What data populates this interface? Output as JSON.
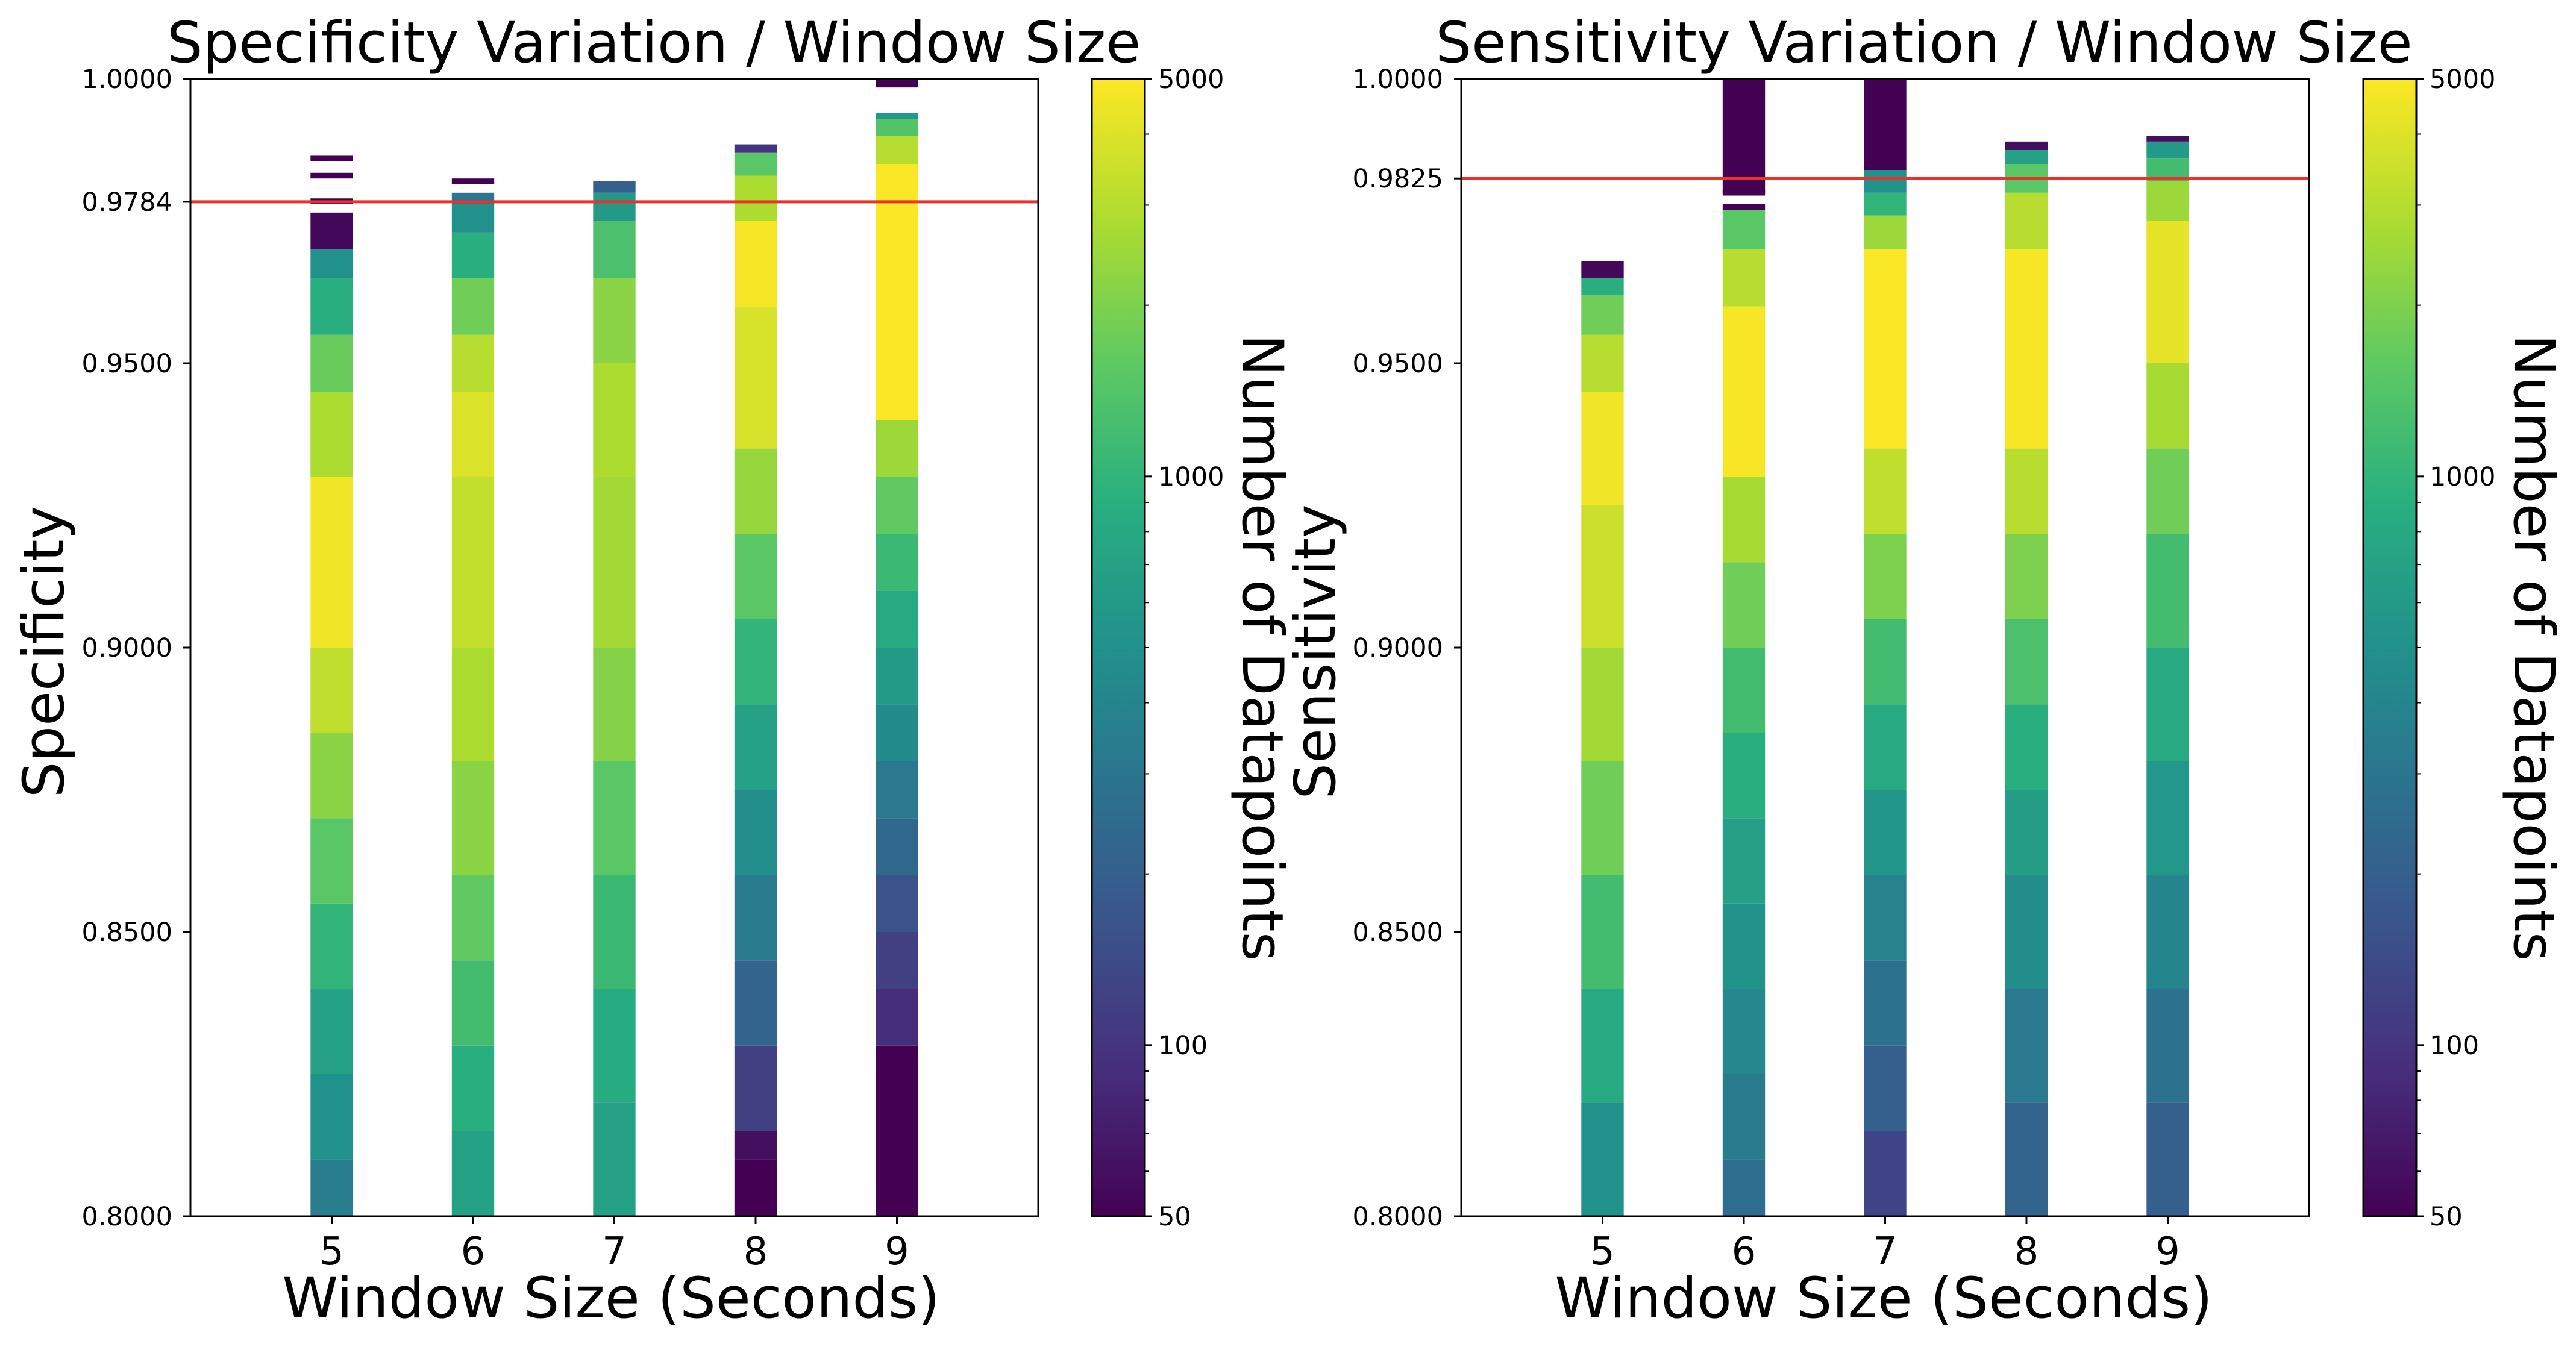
{
  "chart_data": [
    {
      "type": "heatmap",
      "title": "Specificity Variation / Window Size",
      "xlabel": "Window Size (Seconds)",
      "ylabel": "Specificity",
      "x_categories": [
        "5",
        "6",
        "7",
        "8",
        "9"
      ],
      "xlim": [
        4,
        10
      ],
      "ylim": [
        0.8,
        1.0
      ],
      "yticks": [
        0.8,
        0.85,
        0.9,
        0.95,
        0.9784,
        1.0
      ],
      "ytick_labels": [
        "0.8000",
        "0.8500",
        "0.9000",
        "0.9500",
        "0.9784",
        "1.0000"
      ],
      "reference_line": {
        "value": 0.9784,
        "color": "#e8322a"
      },
      "colorbar": {
        "label": "Number of Datapoints",
        "scale": "log",
        "min": 50,
        "max": 5000,
        "ticks": [
          50,
          100,
          1000,
          5000
        ],
        "tick_labels": [
          "50",
          "100",
          "1000",
          "5000"
        ]
      },
      "columns": [
        {
          "x": "5",
          "segments": [
            [
              0.8,
              0.81,
              350
            ],
            [
              0.81,
              0.825,
              500
            ],
            [
              0.825,
              0.84,
              700
            ],
            [
              0.84,
              0.855,
              1000
            ],
            [
              0.855,
              0.87,
              1500
            ],
            [
              0.87,
              0.885,
              2200
            ],
            [
              0.885,
              0.9,
              3200
            ],
            [
              0.9,
              0.93,
              4600
            ],
            [
              0.93,
              0.945,
              2800
            ],
            [
              0.945,
              0.955,
              1700
            ],
            [
              0.955,
              0.965,
              900
            ],
            [
              0.965,
              0.97,
              500
            ],
            [
              0.97,
              0.9765,
              55
            ],
            [
              0.978,
              0.979,
              50
            ],
            [
              0.9825,
              0.9835,
              50
            ],
            [
              0.9855,
              0.9865,
              50
            ]
          ]
        },
        {
          "x": "6",
          "segments": [
            [
              0.8,
              0.815,
              700
            ],
            [
              0.815,
              0.83,
              900
            ],
            [
              0.83,
              0.845,
              1200
            ],
            [
              0.845,
              0.86,
              1600
            ],
            [
              0.86,
              0.88,
              2200
            ],
            [
              0.88,
              0.9,
              2800
            ],
            [
              0.9,
              0.93,
              3300
            ],
            [
              0.93,
              0.945,
              3900
            ],
            [
              0.945,
              0.955,
              3000
            ],
            [
              0.955,
              0.965,
              1800
            ],
            [
              0.965,
              0.973,
              900
            ],
            [
              0.973,
              0.978,
              500
            ],
            [
              0.978,
              0.98,
              300
            ],
            [
              0.9815,
              0.9825,
              50
            ]
          ]
        },
        {
          "x": "7",
          "segments": [
            [
              0.8,
              0.82,
              700
            ],
            [
              0.82,
              0.84,
              850
            ],
            [
              0.84,
              0.86,
              1100
            ],
            [
              0.86,
              0.88,
              1500
            ],
            [
              0.88,
              0.9,
              2100
            ],
            [
              0.9,
              0.93,
              2600
            ],
            [
              0.93,
              0.95,
              2800
            ],
            [
              0.95,
              0.965,
              2200
            ],
            [
              0.965,
              0.975,
              1300
            ],
            [
              0.975,
              0.98,
              600
            ],
            [
              0.98,
              0.982,
              200
            ]
          ]
        },
        {
          "x": "8",
          "segments": [
            [
              0.8,
              0.81,
              50
            ],
            [
              0.81,
              0.815,
              60
            ],
            [
              0.815,
              0.83,
              120
            ],
            [
              0.83,
              0.845,
              220
            ],
            [
              0.845,
              0.86,
              330
            ],
            [
              0.86,
              0.875,
              480
            ],
            [
              0.875,
              0.89,
              700
            ],
            [
              0.89,
              0.905,
              1000
            ],
            [
              0.905,
              0.92,
              1500
            ],
            [
              0.92,
              0.935,
              2400
            ],
            [
              0.935,
              0.96,
              3800
            ],
            [
              0.96,
              0.975,
              4800
            ],
            [
              0.975,
              0.983,
              2800
            ],
            [
              0.983,
              0.987,
              1500
            ],
            [
              0.987,
              0.9885,
              100
            ]
          ]
        },
        {
          "x": "9",
          "segments": [
            [
              0.8,
              0.83,
              50
            ],
            [
              0.83,
              0.84,
              90
            ],
            [
              0.84,
              0.85,
              120
            ],
            [
              0.85,
              0.86,
              160
            ],
            [
              0.86,
              0.87,
              240
            ],
            [
              0.87,
              0.88,
              320
            ],
            [
              0.88,
              0.89,
              450
            ],
            [
              0.89,
              0.9,
              600
            ],
            [
              0.9,
              0.91,
              800
            ],
            [
              0.91,
              0.92,
              1100
            ],
            [
              0.92,
              0.93,
              1600
            ],
            [
              0.93,
              0.94,
              2500
            ],
            [
              0.94,
              0.985,
              4900
            ],
            [
              0.985,
              0.99,
              3000
            ],
            [
              0.99,
              0.993,
              1400
            ],
            [
              0.993,
              0.994,
              600
            ],
            [
              0.9985,
              1.0,
              50
            ]
          ]
        }
      ]
    },
    {
      "type": "heatmap",
      "title": "Sensitivity Variation / Window Size",
      "xlabel": "Window Size (Seconds)",
      "ylabel": "Sensitivity",
      "x_categories": [
        "5",
        "6",
        "7",
        "8",
        "9"
      ],
      "xlim": [
        4,
        10
      ],
      "ylim": [
        0.8,
        1.0
      ],
      "yticks": [
        0.8,
        0.85,
        0.9,
        0.95,
        0.9825,
        1.0
      ],
      "ytick_labels": [
        "0.8000",
        "0.8500",
        "0.9000",
        "0.9500",
        "0.9825",
        "1.0000"
      ],
      "reference_line": {
        "value": 0.9825,
        "color": "#e8322a"
      },
      "colorbar": {
        "label": "Number of Datapoints",
        "scale": "log",
        "min": 50,
        "max": 5000,
        "ticks": [
          50,
          100,
          1000,
          5000
        ],
        "tick_labels": [
          "50",
          "100",
          "1000",
          "5000"
        ]
      },
      "columns": [
        {
          "x": "5",
          "segments": [
            [
              0.8,
              0.82,
              500
            ],
            [
              0.82,
              0.84,
              800
            ],
            [
              0.84,
              0.86,
              1200
            ],
            [
              0.86,
              0.88,
              1800
            ],
            [
              0.88,
              0.9,
              2600
            ],
            [
              0.9,
              0.925,
              3500
            ],
            [
              0.925,
              0.945,
              4600
            ],
            [
              0.945,
              0.955,
              3000
            ],
            [
              0.955,
              0.962,
              1800
            ],
            [
              0.962,
              0.965,
              900
            ],
            [
              0.965,
              0.968,
              55
            ]
          ]
        },
        {
          "x": "6",
          "segments": [
            [
              0.8,
              0.81,
              260
            ],
            [
              0.81,
              0.825,
              330
            ],
            [
              0.825,
              0.84,
              420
            ],
            [
              0.84,
              0.855,
              520
            ],
            [
              0.855,
              0.87,
              680
            ],
            [
              0.87,
              0.885,
              900
            ],
            [
              0.885,
              0.9,
              1200
            ],
            [
              0.9,
              0.915,
              1800
            ],
            [
              0.915,
              0.93,
              2700
            ],
            [
              0.93,
              0.96,
              4800
            ],
            [
              0.96,
              0.97,
              3000
            ],
            [
              0.97,
              0.977,
              1500
            ],
            [
              0.977,
              0.978,
              50
            ],
            [
              0.9795,
              0.9805,
              50
            ],
            [
              0.98,
              1.0,
              50
            ]
          ]
        },
        {
          "x": "7",
          "segments": [
            [
              0.8,
              0.815,
              130
            ],
            [
              0.815,
              0.83,
              200
            ],
            [
              0.83,
              0.845,
              280
            ],
            [
              0.845,
              0.86,
              380
            ],
            [
              0.86,
              0.875,
              550
            ],
            [
              0.875,
              0.89,
              800
            ],
            [
              0.89,
              0.905,
              1200
            ],
            [
              0.905,
              0.92,
              2000
            ],
            [
              0.92,
              0.935,
              3200
            ],
            [
              0.935,
              0.97,
              4900
            ],
            [
              0.97,
              0.976,
              2500
            ],
            [
              0.976,
              0.98,
              1000
            ],
            [
              0.98,
              0.984,
              500
            ],
            [
              0.984,
              1.0,
              50
            ]
          ]
        },
        {
          "x": "8",
          "segments": [
            [
              0.8,
              0.82,
              220
            ],
            [
              0.82,
              0.84,
              320
            ],
            [
              0.84,
              0.86,
              460
            ],
            [
              0.86,
              0.875,
              650
            ],
            [
              0.875,
              0.89,
              900
            ],
            [
              0.89,
              0.905,
              1300
            ],
            [
              0.905,
              0.92,
              2000
            ],
            [
              0.92,
              0.935,
              3000
            ],
            [
              0.935,
              0.97,
              4800
            ],
            [
              0.97,
              0.98,
              3000
            ],
            [
              0.98,
              0.985,
              1500
            ],
            [
              0.985,
              0.9875,
              700
            ],
            [
              0.9875,
              0.989,
              60
            ]
          ]
        },
        {
          "x": "9",
          "segments": [
            [
              0.8,
              0.82,
              200
            ],
            [
              0.82,
              0.84,
              280
            ],
            [
              0.84,
              0.86,
              400
            ],
            [
              0.86,
              0.88,
              560
            ],
            [
              0.88,
              0.9,
              800
            ],
            [
              0.9,
              0.92,
              1200
            ],
            [
              0.92,
              0.935,
              1800
            ],
            [
              0.935,
              0.95,
              2700
            ],
            [
              0.95,
              0.975,
              4200
            ],
            [
              0.975,
              0.982,
              2500
            ],
            [
              0.982,
              0.986,
              1200
            ],
            [
              0.986,
              0.989,
              600
            ],
            [
              0.989,
              0.99,
              60
            ]
          ]
        }
      ]
    }
  ]
}
